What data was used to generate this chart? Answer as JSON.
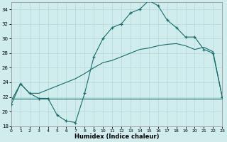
{
  "xlabel": "Humidex (Indice chaleur)",
  "bg_color": "#d0ecec",
  "grid_color": "#b8dcdc",
  "line_color": "#1a6b6b",
  "xlim": [
    0,
    23
  ],
  "ylim": [
    18,
    35
  ],
  "xticks": [
    0,
    1,
    2,
    3,
    4,
    5,
    6,
    7,
    8,
    9,
    10,
    11,
    12,
    13,
    14,
    15,
    16,
    17,
    18,
    19,
    20,
    21,
    22,
    23
  ],
  "yticks": [
    18,
    20,
    22,
    24,
    26,
    28,
    30,
    32,
    34
  ],
  "line1_x": [
    0,
    1,
    2,
    3,
    4,
    5,
    6,
    7,
    8,
    9,
    10,
    11,
    12,
    13,
    14,
    15,
    16,
    17,
    18,
    19,
    20,
    21,
    22,
    23
  ],
  "line1_y": [
    21.0,
    23.8,
    22.5,
    21.8,
    21.8,
    19.5,
    18.7,
    18.5,
    22.5,
    27.5,
    30.0,
    31.5,
    32.0,
    33.5,
    34.0,
    35.2,
    34.5,
    32.5,
    31.5,
    30.2,
    30.2,
    28.5,
    28.0,
    22.0
  ],
  "line2_x": [
    0,
    3,
    15,
    23
  ],
  "line2_y": [
    21.8,
    21.8,
    21.8,
    21.8
  ],
  "line3_x": [
    0,
    1,
    2,
    3,
    4,
    5,
    6,
    7,
    8,
    9,
    10,
    11,
    12,
    13,
    14,
    15,
    16,
    17,
    18,
    19,
    20,
    21,
    22,
    23
  ],
  "line3_y": [
    21.5,
    23.8,
    22.5,
    22.5,
    23.0,
    23.5,
    24.0,
    24.5,
    25.2,
    26.0,
    26.7,
    27.0,
    27.5,
    28.0,
    28.5,
    28.7,
    29.0,
    29.2,
    29.3,
    29.0,
    28.5,
    28.8,
    28.2,
    22.0
  ]
}
